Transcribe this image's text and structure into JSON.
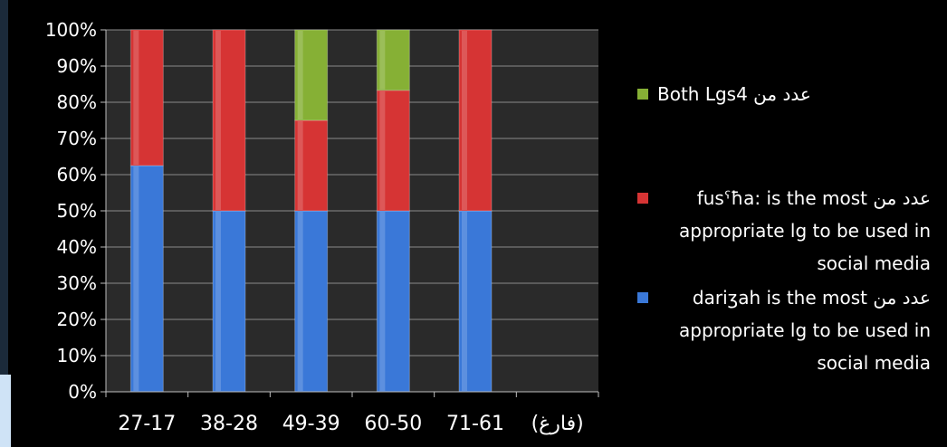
{
  "chart_data": {
    "type": "bar",
    "stacked": true,
    "percent_stacked": true,
    "categories": [
      "27-17",
      "38-28",
      "49-39",
      "60-50",
      "71-61",
      "(فارغ)"
    ],
    "series": [
      {
        "name": "عدد من  dariʒah is the most appropriate lg to be used in social media",
        "color": "#3a78d8",
        "values": [
          62.5,
          50,
          50,
          50,
          50,
          0
        ]
      },
      {
        "name": "عدد من  fusˁħa: is the most appropriate lg to be used in social media",
        "color": "#d63434",
        "values": [
          37.5,
          50,
          25,
          33.3,
          50,
          0
        ]
      },
      {
        "name": "عدد من Both Lgs4",
        "color": "#86b035",
        "values": [
          0,
          0,
          25,
          16.7,
          0,
          0
        ]
      }
    ],
    "ylim": [
      0,
      100
    ],
    "yticks": [
      "0%",
      "10%",
      "20%",
      "30%",
      "40%",
      "50%",
      "60%",
      "70%",
      "80%",
      "90%",
      "100%"
    ],
    "grid": true,
    "legend_position": "right",
    "title": "",
    "xlabel": "",
    "ylabel": ""
  },
  "colors": {
    "plot_bg": "#2a2a2a",
    "gridline": "#8a8a8a",
    "axis": "#bdbdbd",
    "text": "#ffffff"
  }
}
